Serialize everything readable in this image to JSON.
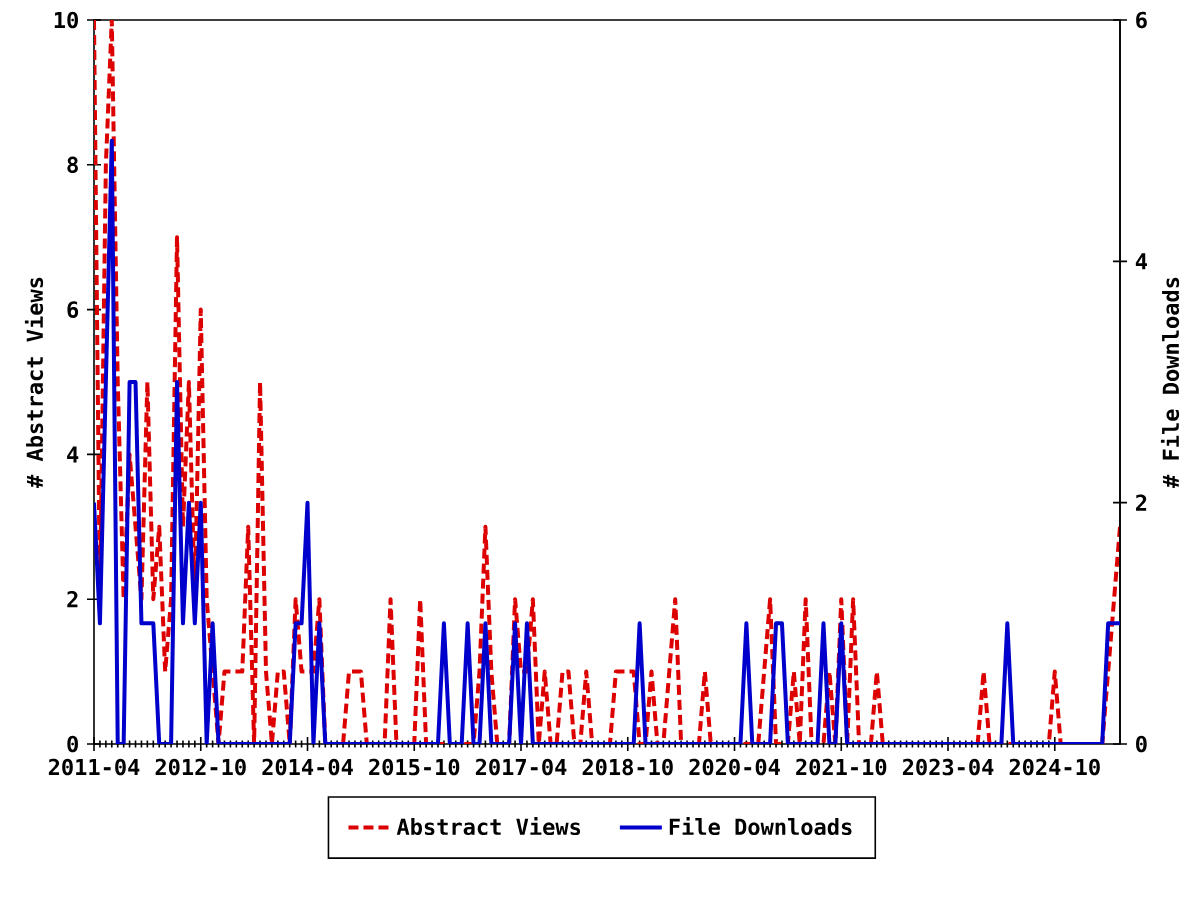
{
  "chart_data": {
    "type": "line",
    "ylabel": "# Abstract Views",
    "y2label": "# File Downloads",
    "x": [
      "2011-04",
      "2011-05",
      "2011-06",
      "2011-07",
      "2011-08",
      "2011-09",
      "2011-10",
      "2011-11",
      "2011-12",
      "2012-01",
      "2012-02",
      "2012-03",
      "2012-04",
      "2012-05",
      "2012-06",
      "2012-07",
      "2012-08",
      "2012-09",
      "2012-10",
      "2012-11",
      "2012-12",
      "2013-01",
      "2013-02",
      "2013-03",
      "2013-04",
      "2013-05",
      "2013-06",
      "2013-07",
      "2013-08",
      "2013-09",
      "2013-10",
      "2013-11",
      "2013-12",
      "2014-01",
      "2014-02",
      "2014-03",
      "2014-04",
      "2014-05",
      "2014-06",
      "2014-07",
      "2014-08",
      "2014-09",
      "2014-10",
      "2014-11",
      "2014-12",
      "2015-01",
      "2015-02",
      "2015-03",
      "2015-04",
      "2015-05",
      "2015-06",
      "2015-07",
      "2015-08",
      "2015-09",
      "2015-10",
      "2015-11",
      "2015-12",
      "2016-01",
      "2016-02",
      "2016-03",
      "2016-04",
      "2016-05",
      "2016-06",
      "2016-07",
      "2016-08",
      "2016-09",
      "2016-10",
      "2016-11",
      "2016-12",
      "2017-01",
      "2017-02",
      "2017-03",
      "2017-04",
      "2017-05",
      "2017-06",
      "2017-07",
      "2017-08",
      "2017-09",
      "2017-10",
      "2017-11",
      "2017-12",
      "2018-01",
      "2018-02",
      "2018-03",
      "2018-04",
      "2018-05",
      "2018-06",
      "2018-07",
      "2018-08",
      "2018-09",
      "2018-10",
      "2018-11",
      "2018-12",
      "2019-01",
      "2019-02",
      "2019-03",
      "2019-04",
      "2019-05",
      "2019-06",
      "2019-07",
      "2019-08",
      "2019-09",
      "2019-10",
      "2019-11",
      "2019-12",
      "2020-01",
      "2020-02",
      "2020-03",
      "2020-04",
      "2020-05",
      "2020-06",
      "2020-07",
      "2020-08",
      "2020-09",
      "2020-10",
      "2020-11",
      "2020-12",
      "2021-01",
      "2021-02",
      "2021-03",
      "2021-04",
      "2021-05",
      "2021-06",
      "2021-07",
      "2021-08",
      "2021-09",
      "2021-10",
      "2021-11",
      "2021-12",
      "2022-01",
      "2022-02",
      "2022-03",
      "2022-04",
      "2022-05",
      "2022-06",
      "2022-07",
      "2022-08",
      "2022-09",
      "2022-10",
      "2022-11",
      "2022-12",
      "2023-01",
      "2023-02",
      "2023-03",
      "2023-04",
      "2023-05",
      "2023-06",
      "2023-07",
      "2023-08",
      "2023-09",
      "2023-10",
      "2023-11",
      "2023-12",
      "2024-01",
      "2024-02",
      "2024-03",
      "2024-04",
      "2024-05",
      "2024-06",
      "2024-07",
      "2024-08",
      "2024-09",
      "2024-10",
      "2024-11",
      "2024-12",
      "2025-01",
      "2025-02",
      "2025-03",
      "2025-04",
      "2025-05",
      "2025-06",
      "2025-07",
      "2025-08",
      "2025-09"
    ],
    "xlim": [
      "2011-04",
      "2025-09"
    ],
    "xticks": [
      "2011-04",
      "2012-10",
      "2014-04",
      "2015-10",
      "2017-04",
      "2018-10",
      "2020-04",
      "2021-10",
      "2023-04",
      "2024-10"
    ],
    "ylim": [
      0,
      10
    ],
    "yticks": [
      0,
      2,
      4,
      6,
      8,
      10
    ],
    "y2lim": [
      0,
      6
    ],
    "y2ticks": [
      0,
      2,
      4,
      6
    ],
    "legend": "bottom",
    "series": [
      {
        "name": "Abstract Views",
        "color": "#dd0000",
        "line_style": "dashed",
        "values": [
          10,
          2,
          8,
          10,
          5,
          2,
          4,
          3,
          2,
          5,
          2,
          3,
          1,
          2,
          7,
          3,
          5,
          2,
          6,
          2,
          1,
          0,
          1,
          1,
          1,
          1,
          3,
          0,
          5,
          1,
          0,
          1,
          1,
          0,
          2,
          1,
          1,
          1,
          2,
          0,
          0,
          0,
          0,
          1,
          1,
          1,
          0,
          0,
          0,
          0,
          2,
          0,
          0,
          0,
          0,
          2,
          0,
          0,
          0,
          0,
          0,
          0,
          0,
          0,
          0,
          1,
          3,
          1,
          0,
          0,
          0,
          2,
          1,
          1,
          2,
          0,
          1,
          0,
          0,
          1,
          1,
          0,
          0,
          1,
          0,
          0,
          0,
          0,
          1,
          1,
          1,
          1,
          0,
          0,
          1,
          0,
          0,
          1,
          2,
          0,
          0,
          0,
          0,
          1,
          0,
          0,
          0,
          0,
          0,
          0,
          0,
          0,
          0,
          1,
          2,
          0,
          0,
          0,
          1,
          0,
          2,
          0,
          0,
          0,
          1,
          0,
          2,
          0,
          2,
          0,
          0,
          0,
          1,
          0,
          0,
          0,
          0,
          0,
          0,
          0,
          0,
          0,
          0,
          0,
          0,
          0,
          0,
          0,
          0,
          0,
          1,
          0,
          0,
          0,
          0,
          0,
          0,
          0,
          0,
          0,
          0,
          0,
          1,
          0,
          0,
          0,
          0,
          0,
          0,
          0,
          0,
          1,
          2,
          3
        ]
      },
      {
        "name": "File Downloads",
        "color": "#0000cc",
        "line_style": "solid",
        "axis": "y2",
        "values": [
          2,
          1,
          3,
          5,
          0,
          0,
          3,
          3,
          1,
          1,
          1,
          0,
          0,
          0,
          3,
          1,
          2,
          1,
          2,
          0,
          1,
          0,
          0,
          0,
          0,
          0,
          0,
          0,
          0,
          0,
          0,
          0,
          0,
          0,
          1,
          1,
          2,
          0,
          1,
          0,
          0,
          0,
          0,
          0,
          0,
          0,
          0,
          0,
          0,
          0,
          0,
          0,
          0,
          0,
          0,
          0,
          0,
          0,
          0,
          1,
          0,
          0,
          0,
          1,
          0,
          0,
          1,
          0,
          0,
          0,
          0,
          1,
          0,
          1,
          0,
          0,
          0,
          0,
          0,
          0,
          0,
          0,
          0,
          0,
          0,
          0,
          0,
          0,
          0,
          0,
          0,
          0,
          1,
          0,
          0,
          0,
          0,
          0,
          0,
          0,
          0,
          0,
          0,
          0,
          0,
          0,
          0,
          0,
          0,
          0,
          1,
          0,
          0,
          0,
          0,
          1,
          1,
          0,
          0,
          0,
          0,
          0,
          0,
          1,
          0,
          0,
          1,
          0,
          0,
          0,
          0,
          0,
          0,
          0,
          0,
          0,
          0,
          0,
          0,
          0,
          0,
          0,
          0,
          0,
          0,
          0,
          0,
          0,
          0,
          0,
          0,
          0,
          0,
          0,
          1,
          0,
          0,
          0,
          0,
          0,
          0,
          0,
          0,
          0,
          0,
          0,
          0,
          0,
          0,
          0,
          0,
          1,
          1,
          1
        ]
      }
    ]
  }
}
